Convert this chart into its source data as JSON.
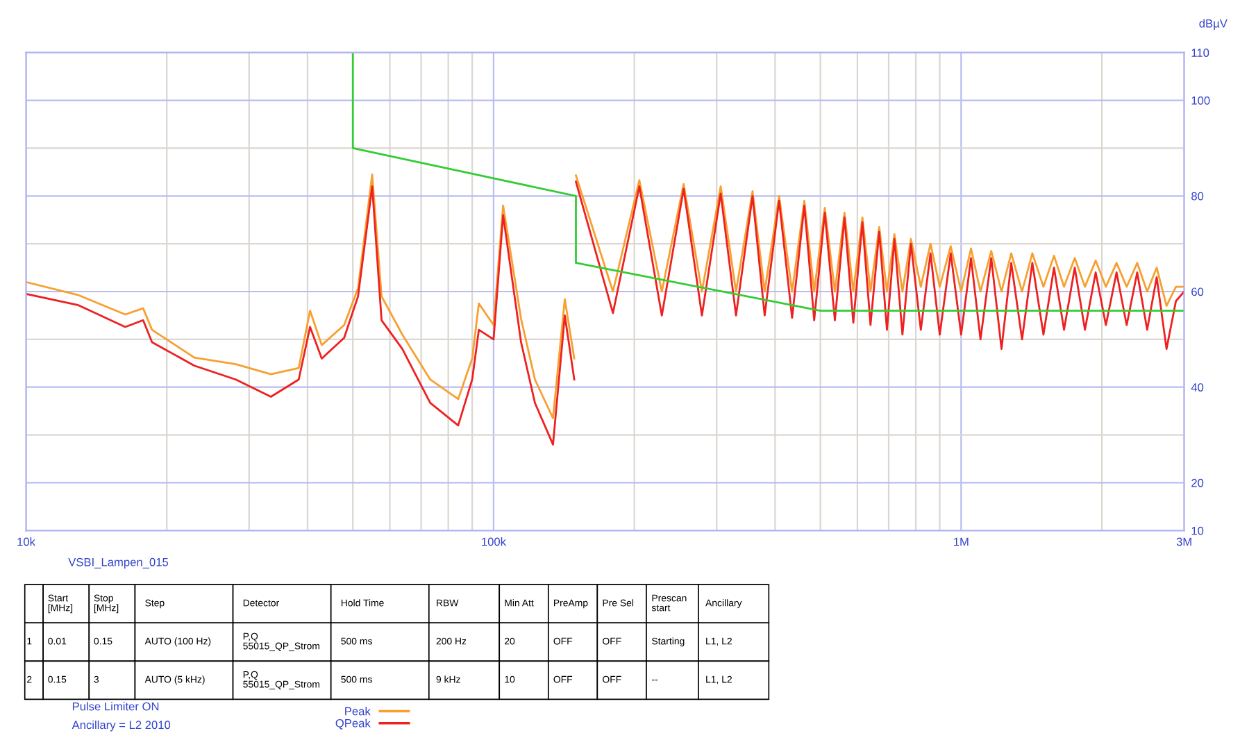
{
  "chart_data": {
    "type": "line",
    "ylabel": "dBµV",
    "log": "x",
    "grid": true,
    "legend": "bottom",
    "line_style": "solid",
    "marker": "none",
    "xlim": [
      10000,
      3000000
    ],
    "ylim": [
      10,
      110
    ],
    "xticks": [
      {
        "value": 10000,
        "label": "10k"
      },
      {
        "value": 20000,
        "label": null
      },
      {
        "value": 30000,
        "label": null
      },
      {
        "value": 40000,
        "label": null
      },
      {
        "value": 50000,
        "label": null
      },
      {
        "value": 60000,
        "label": null
      },
      {
        "value": 70000,
        "label": null
      },
      {
        "value": 80000,
        "label": null
      },
      {
        "value": 90000,
        "label": null
      },
      {
        "value": 100000,
        "label": "100k"
      },
      {
        "value": 200000,
        "label": null
      },
      {
        "value": 300000,
        "label": null
      },
      {
        "value": 400000,
        "label": null
      },
      {
        "value": 500000,
        "label": null
      },
      {
        "value": 600000,
        "label": null
      },
      {
        "value": 700000,
        "label": null
      },
      {
        "value": 800000,
        "label": null
      },
      {
        "value": 900000,
        "label": null
      },
      {
        "value": 1000000,
        "label": "1M"
      },
      {
        "value": 2000000,
        "label": null
      },
      {
        "value": 3000000,
        "label": "3M"
      }
    ],
    "yticks": [
      10,
      20,
      {
        "value": 30,
        "label": null
      },
      40,
      {
        "value": 50,
        "label": null
      },
      60,
      {
        "value": 70,
        "label": null
      },
      80,
      {
        "value": 90,
        "label": null
      },
      100,
      110
    ],
    "series": [
      {
        "name": "Peak",
        "color": "#f7a030",
        "x": [
          10000,
          12900,
          16300,
          17800,
          18600,
          22900,
          28100,
          33400,
          38300,
          40500,
          42900,
          47900,
          51300,
          55000,
          57600,
          63800,
          73200,
          84000,
          90000,
          93000,
          100000,
          104800,
          114500,
          122600,
          134000,
          142000,
          148800,
          149500,
          150000,
          180000,
          205000,
          229000,
          255000,
          279000,
          306000,
          330000,
          358000,
          380000,
          408000,
          435000,
          462000,
          485000,
          511000,
          537000,
          563000,
          588000,
          615000,
          640000,
          668000,
          694000,
          720000,
          749000,
          781000,
          820000,
          860000,
          900000,
          950000,
          1000000,
          1050000,
          1100000,
          1160000,
          1220000,
          1280000,
          1350000,
          1420000,
          1500000,
          1580000,
          1660000,
          1750000,
          1840000,
          1940000,
          2040000,
          2150000,
          2260000,
          2380000,
          2500000,
          2620000,
          2750000,
          2880000,
          3000000
        ],
        "values": [
          62,
          59.3,
          55.2,
          56.5,
          52,
          46.2,
          44.8,
          42.7,
          44,
          56,
          48.8,
          53,
          60.7,
          84.5,
          59,
          51,
          41.6,
          37.5,
          46,
          57.5,
          53,
          78,
          54.3,
          41.6,
          33.5,
          58.4,
          46,
          null,
          84.3,
          60,
          83.3,
          60,
          82.5,
          60,
          82,
          60,
          81,
          60,
          80,
          60,
          79,
          60,
          77.5,
          60,
          76.5,
          60,
          75.5,
          60,
          73.5,
          60,
          72,
          60,
          71,
          61,
          70,
          61,
          69.5,
          60,
          69,
          60,
          68.5,
          60,
          68,
          60,
          68,
          61,
          67.5,
          61,
          67,
          61,
          66.5,
          61,
          66,
          61,
          66,
          60,
          65,
          57,
          61,
          61
        ]
      },
      {
        "name": "QPeak",
        "color": "#ee2020",
        "x": [
          10000,
          12900,
          16300,
          17800,
          18600,
          22900,
          28100,
          33400,
          38300,
          40500,
          42900,
          47900,
          51300,
          55000,
          57600,
          63800,
          73200,
          84000,
          90000,
          93000,
          100000,
          104800,
          114500,
          122600,
          134000,
          142000,
          148800,
          149500,
          150000,
          180000,
          205000,
          229000,
          255000,
          279000,
          306000,
          330000,
          358000,
          380000,
          408000,
          435000,
          462000,
          485000,
          511000,
          537000,
          563000,
          588000,
          615000,
          640000,
          668000,
          694000,
          720000,
          749000,
          781000,
          820000,
          860000,
          900000,
          950000,
          1000000,
          1050000,
          1100000,
          1160000,
          1220000,
          1280000,
          1350000,
          1420000,
          1500000,
          1580000,
          1660000,
          1750000,
          1840000,
          1940000,
          2040000,
          2150000,
          2260000,
          2380000,
          2500000,
          2620000,
          2750000,
          2880000,
          3000000
        ],
        "values": [
          59.5,
          57.2,
          52.6,
          54,
          49.4,
          44.5,
          41.6,
          38,
          41.6,
          52.6,
          46,
          50.3,
          59,
          82,
          54,
          48,
          36.7,
          32,
          41.6,
          52,
          50,
          76,
          49.4,
          36.7,
          28,
          55,
          41.6,
          null,
          83,
          55.5,
          82,
          55,
          81.5,
          55,
          80.5,
          55,
          80,
          55,
          79,
          54.5,
          78,
          54,
          76.5,
          54,
          75.5,
          53.5,
          74.5,
          53,
          72.5,
          52,
          71,
          51,
          70,
          52,
          68,
          51,
          68,
          51,
          67,
          50,
          67,
          48,
          66,
          50,
          66,
          51,
          65,
          52,
          65,
          52,
          64,
          53,
          64,
          53,
          64,
          52,
          63,
          48,
          58,
          60
        ]
      },
      {
        "color": "#33cc33",
        "x": [
          50000,
          50000,
          150000,
          150000,
          500000,
          3000000
        ],
        "values": [
          110,
          90,
          80,
          66,
          56,
          56
        ]
      }
    ],
    "annotations": [
      "VSBI_Lampen_015",
      "Start\n[MHz]",
      "Stop\n[MHz]",
      "Step",
      "Detector",
      "Hold Time",
      "RBW",
      "Min Att",
      "PreAmp",
      "Pre Sel",
      "Prescan\nstart",
      "Ancillary",
      "1",
      "0.01",
      "0.15",
      "AUTO (100 Hz)",
      "P,Q\n55015_QP_Strom",
      "500 ms",
      "200 Hz",
      "20",
      "OFF",
      "OFF",
      "Starting",
      "L1, L2",
      "2",
      "0.15",
      "3",
      "AUTO (5 kHz)",
      "P,Q\n55015_QP_Strom",
      "500 ms",
      "9 kHz",
      "10",
      "OFF",
      "OFF",
      "--",
      "L1, L2",
      "Pulse Limiter ON",
      "Ancillary = L2 2010"
    ]
  }
}
